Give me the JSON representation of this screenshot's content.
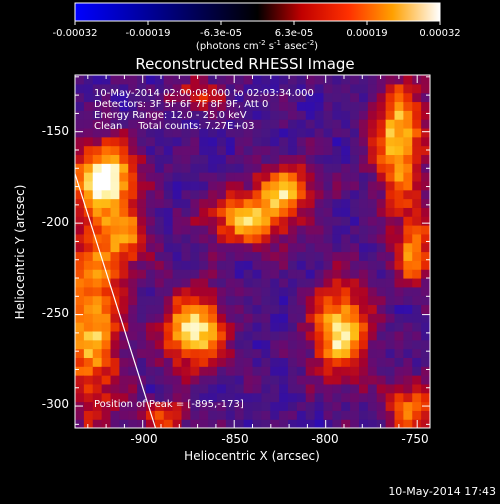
{
  "colorbar": {
    "tick_labels": [
      "-0.00032",
      "-0.00019",
      "-6.3e-05",
      "6.3e-05",
      "0.00019",
      "0.00032"
    ],
    "min": -0.00032,
    "max": 0.00032,
    "units_prefix": "(photons cm",
    "units_sup1": "-2",
    "units_mid": " s",
    "units_sup2": "-1",
    "units_mid2": " asec",
    "units_sup3": "-2",
    "units_suffix": ")"
  },
  "chart_data": {
    "type": "heatmap",
    "title": "Reconstructed RHESSI Image",
    "xlabel": "Heliocentric X (arcsec)",
    "ylabel": "Heliocentric Y (arcsec)",
    "xlim": [
      -937,
      -743
    ],
    "ylim": [
      -312,
      -119
    ],
    "x_ticks": [
      -900,
      -850,
      -800,
      -750
    ],
    "y_ticks": [
      -300,
      -250,
      -200,
      -150
    ],
    "x_tick_labels": [
      "-900",
      "-850",
      "-800",
      "-750"
    ],
    "y_tick_labels": [
      "-300",
      "-250",
      "-200",
      "-150"
    ],
    "annotations": [
      "10-May-2014 02:00:08.000 to 02:03:34.000",
      "Detectors: 3F 5F 6F 7F 8F 9F, Att 0",
      "Energy Range: 12.0 - 25.0 keV",
      "Clean     Total counts: 7.27E+03"
    ],
    "peak_label": "Position of Peak = [-895,-173]",
    "peak": [
      -895,
      -173
    ],
    "limb_line": [
      [
        -937,
        -173
      ],
      [
        -893,
        -312
      ]
    ],
    "sources": [
      {
        "x": -920,
        "y": -175,
        "sx": 12,
        "sy": 14,
        "amp": 1.0
      },
      {
        "x": -910,
        "y": -208,
        "sx": 10,
        "sy": 12,
        "amp": 0.55
      },
      {
        "x": -928,
        "y": -255,
        "sx": 12,
        "sy": 38,
        "amp": 0.75
      },
      {
        "x": -842,
        "y": -198,
        "sx": 16,
        "sy": 10,
        "amp": 0.8
      },
      {
        "x": -822,
        "y": -180,
        "sx": 12,
        "sy": 9,
        "amp": 0.7
      },
      {
        "x": -872,
        "y": -258,
        "sx": 12,
        "sy": 14,
        "amp": 0.95
      },
      {
        "x": -792,
        "y": -258,
        "sx": 11,
        "sy": 18,
        "amp": 0.9
      },
      {
        "x": -760,
        "y": -155,
        "sx": 10,
        "sy": 24,
        "amp": 0.85
      },
      {
        "x": -752,
        "y": -215,
        "sx": 8,
        "sy": 14,
        "amp": 0.65
      },
      {
        "x": -752,
        "y": -300,
        "sx": 12,
        "sy": 10,
        "amp": 0.6
      },
      {
        "x": -870,
        "y": -130,
        "sx": 10,
        "sy": 6,
        "amp": 0.45
      },
      {
        "x": -888,
        "y": -305,
        "sx": 10,
        "sy": 6,
        "amp": 0.5
      }
    ]
  },
  "timestamp": "10-May-2014 17:43"
}
